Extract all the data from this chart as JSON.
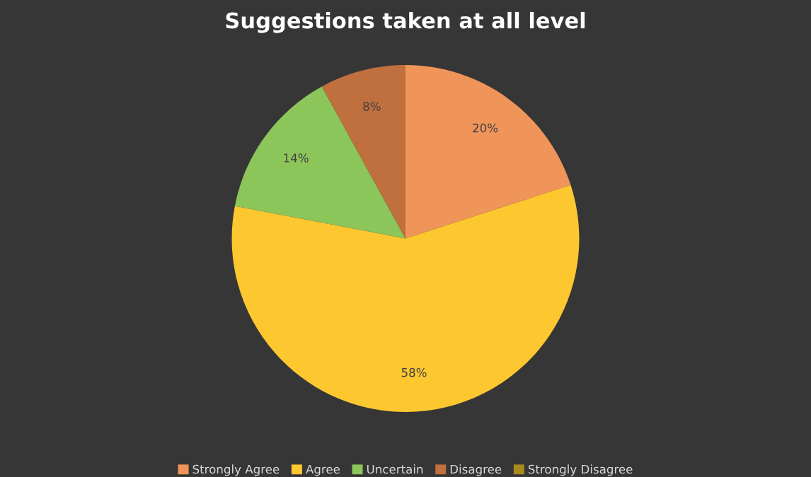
{
  "chart_data": {
    "type": "pie",
    "title": "Suggestions taken at all level",
    "categories": [
      "Strongly Agree",
      "Agree",
      "Uncertain",
      "Disagree",
      "Strongly Disagree"
    ],
    "values": [
      20,
      58,
      14,
      8,
      0
    ],
    "colors": [
      "#f0955a",
      "#fdc72f",
      "#8cc65a",
      "#c0703e",
      "#a88a1e"
    ],
    "value_labels": [
      "20%",
      "58%",
      "14%",
      "8%",
      null
    ],
    "legend": "bottom"
  }
}
